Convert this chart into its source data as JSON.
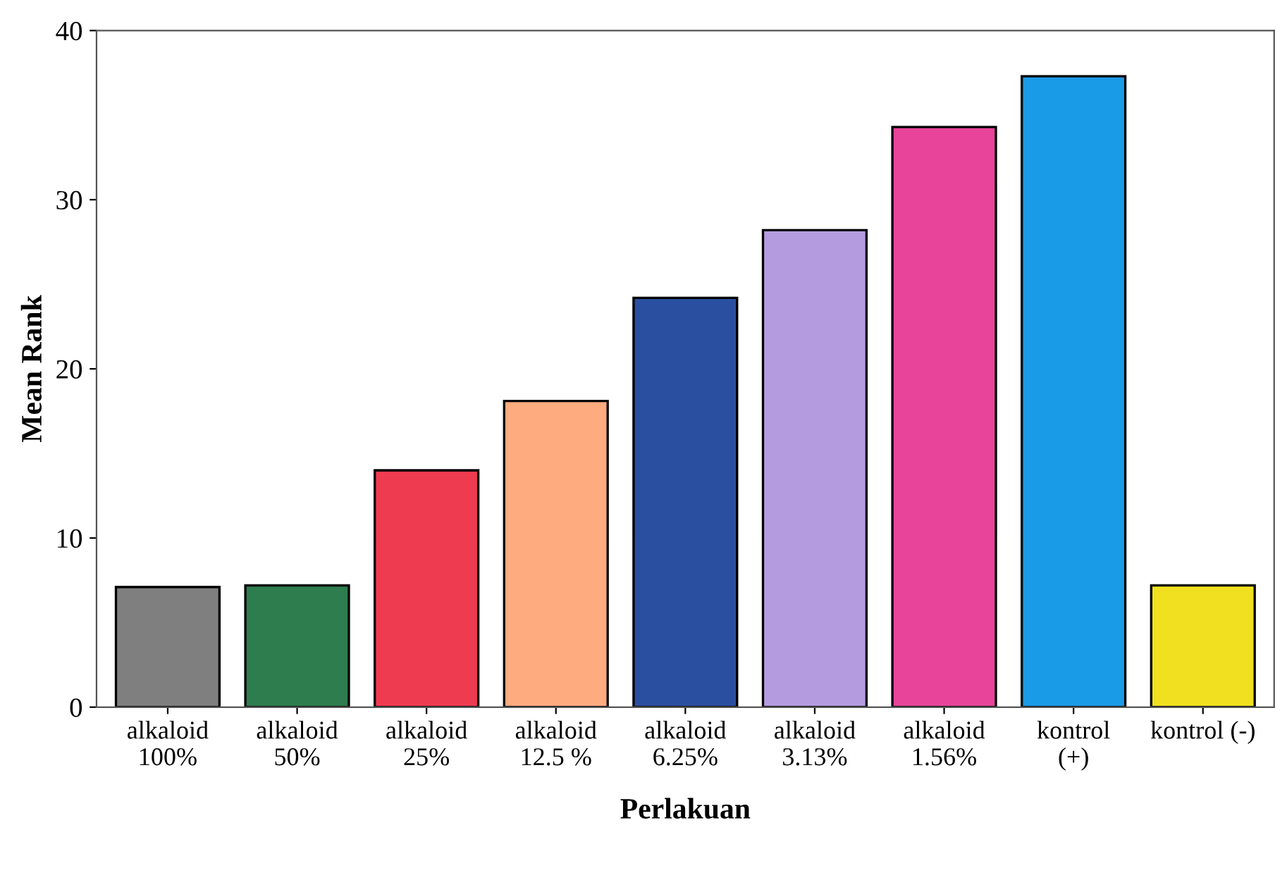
{
  "chart_data": {
    "type": "bar",
    "xlabel": "Perlakuan",
    "ylabel": "Mean Rank",
    "categories": [
      "alkaloid\n100%",
      "alkaloid\n50%",
      "alkaloid\n25%",
      "alkaloid\n12.5 %",
      "alkaloid\n6.25%",
      "alkaloid\n3.13%",
      "alkaloid\n1.56%",
      "kontrol\n(+)",
      "kontrol (-)"
    ],
    "values": [
      7.1,
      7.2,
      14.0,
      18.1,
      24.2,
      28.2,
      34.3,
      37.3,
      7.2
    ],
    "colors": [
      "#7f7f7f",
      "#2e7d4f",
      "#ef3b4f",
      "#ffab80",
      "#2b4fa0",
      "#b49be0",
      "#e8449a",
      "#1a9be8",
      "#f0e020"
    ],
    "ylim": [
      0,
      40
    ],
    "yticks": [
      0,
      10,
      20,
      30,
      40
    ],
    "grid": false
  }
}
